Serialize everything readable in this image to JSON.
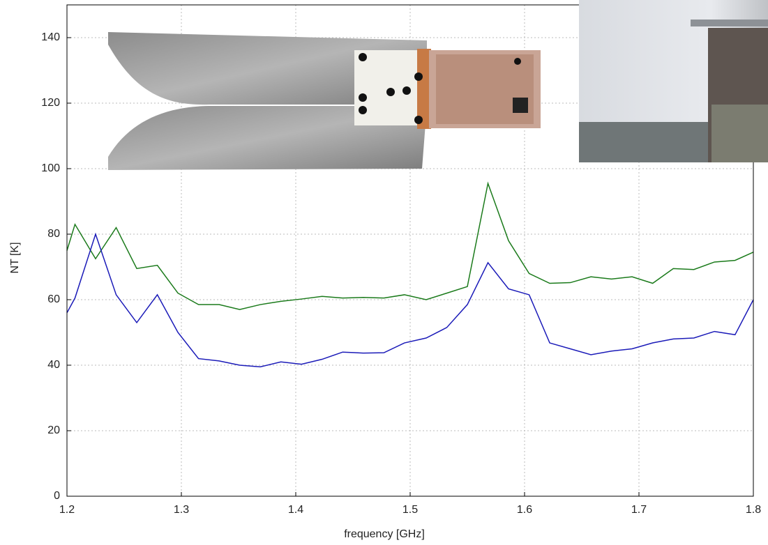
{
  "chart_data": {
    "type": "line",
    "x_label": "frequency [GHz]",
    "y_label": "NT [K]",
    "xlim": [
      1.2,
      1.8
    ],
    "ylim": [
      0,
      150
    ],
    "xticks": [
      1.2,
      1.3,
      1.4,
      1.5,
      1.6,
      1.7,
      1.8
    ],
    "yticks": [
      0,
      20,
      40,
      60,
      80,
      100,
      120,
      140
    ],
    "grid": true,
    "x": [
      1.2,
      1.207,
      1.225,
      1.243,
      1.261,
      1.279,
      1.297,
      1.315,
      1.333,
      1.351,
      1.369,
      1.387,
      1.405,
      1.423,
      1.441,
      1.459,
      1.477,
      1.495,
      1.514,
      1.532,
      1.55,
      1.568,
      1.586,
      1.604,
      1.622,
      1.64,
      1.658,
      1.676,
      1.694,
      1.712,
      1.73,
      1.748,
      1.766,
      1.784,
      1.8
    ],
    "series": [
      {
        "color": "#1a7a1a",
        "values": [
          75,
          83,
          72.5,
          82,
          69.5,
          70.5,
          62,
          58.5,
          58.5,
          57,
          58.5,
          59.5,
          60.2,
          61,
          60.5,
          60.7,
          60.5,
          61.5,
          60,
          62,
          64,
          95.5,
          78,
          68,
          65,
          65.2,
          67,
          66.3,
          67,
          65,
          69.5,
          69.2,
          71.5,
          72,
          74.5
        ]
      },
      {
        "color": "#1a1ab8",
        "values": [
          56,
          60.5,
          80,
          61.5,
          53,
          61.5,
          50,
          42,
          41.3,
          40,
          39.5,
          41,
          40.3,
          41.8,
          44,
          43.7,
          43.8,
          46.8,
          48.3,
          51.5,
          58.5,
          71.3,
          63.3,
          61.5,
          46.8,
          45,
          43.2,
          44.3,
          45,
          46.8,
          48,
          48.3,
          50.3,
          49.3,
          60
        ]
      }
    ]
  }
}
